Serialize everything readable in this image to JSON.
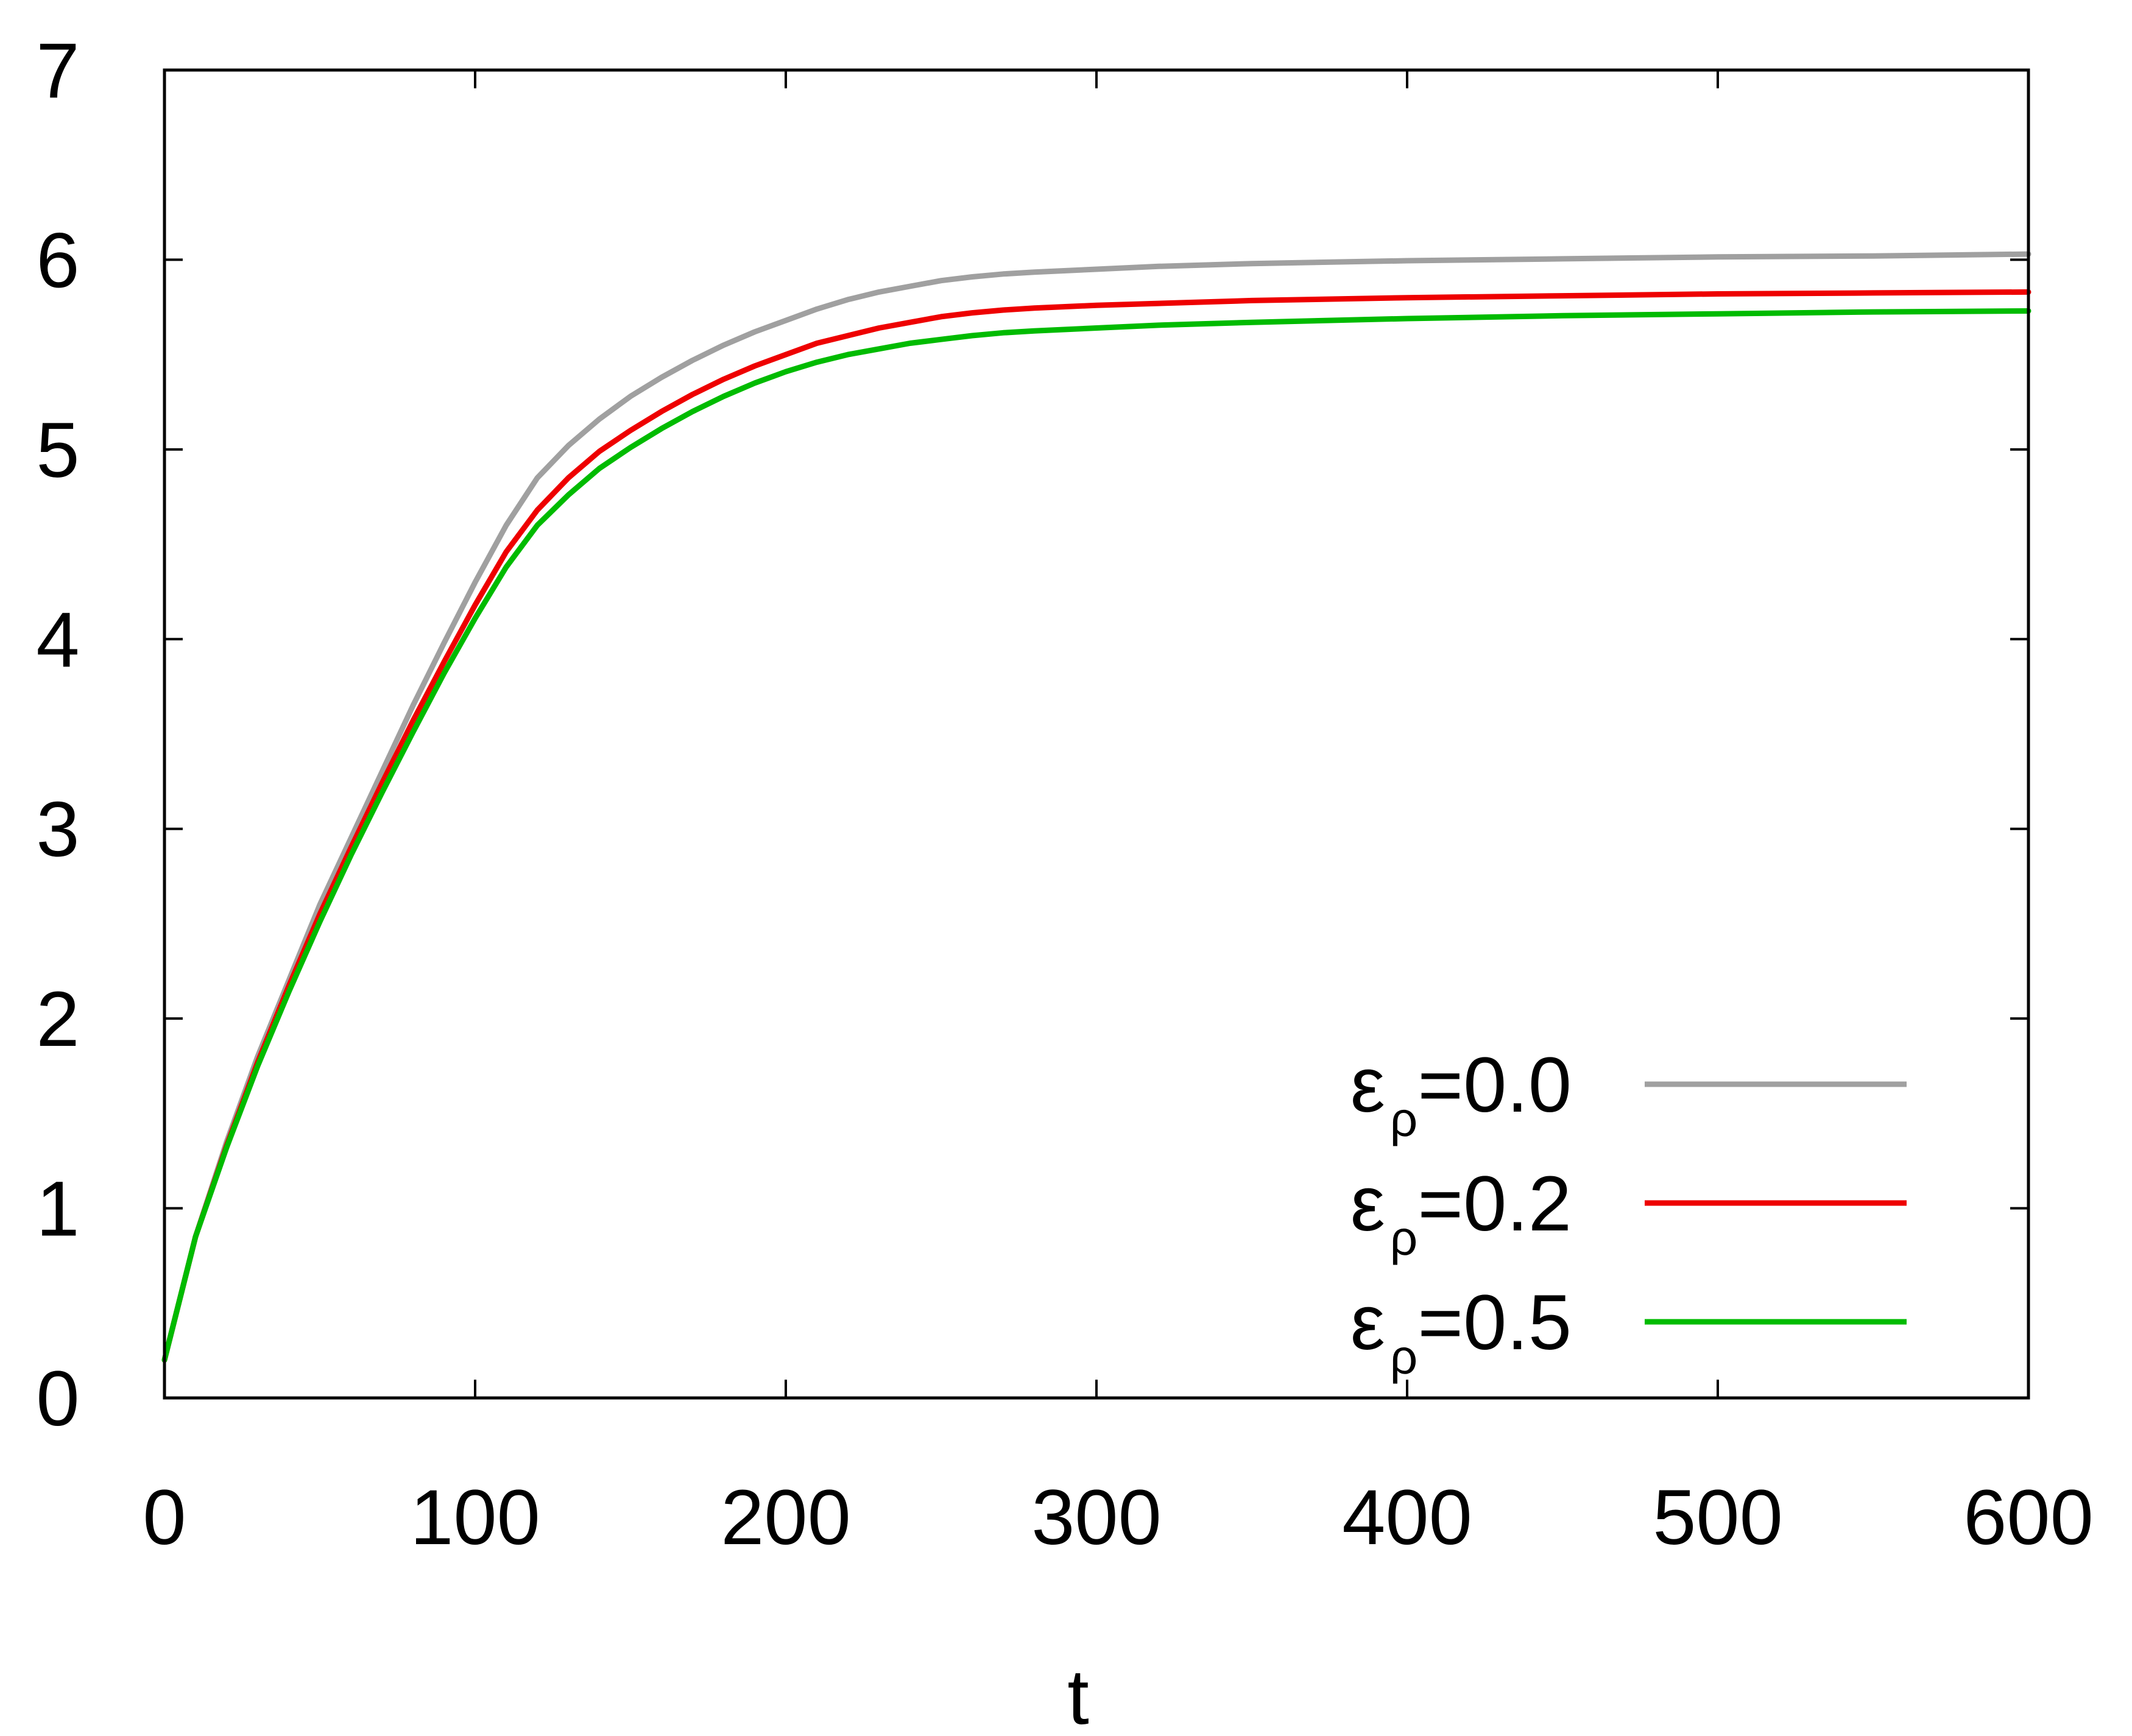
{
  "chart_data": {
    "type": "line",
    "title": "",
    "xlabel": "t",
    "ylabel": "",
    "xlim": [
      0,
      600
    ],
    "ylim": [
      0,
      7
    ],
    "xticks": [
      "0",
      "100",
      "200",
      "300",
      "400",
      "500",
      "600"
    ],
    "yticks": [
      "0",
      "1",
      "2",
      "3",
      "4",
      "5",
      "6",
      "7"
    ],
    "grid": false,
    "legend_position": "bottom-right",
    "series": [
      {
        "name": "ε",
        "name_sub": "ρ",
        "name_suffix": "=0.0",
        "color": "#a0a0a0",
        "x": [
          0,
          10,
          20,
          30,
          40,
          50,
          60,
          70,
          80,
          90,
          100,
          110,
          120,
          130,
          140,
          150,
          160,
          170,
          180,
          190,
          200,
          210,
          220,
          230,
          240,
          250,
          260,
          270,
          280,
          300,
          320,
          350,
          400,
          450,
          500,
          550,
          600
        ],
        "y": [
          0.2,
          0.85,
          1.35,
          1.8,
          2.2,
          2.6,
          2.95,
          3.3,
          3.65,
          3.98,
          4.3,
          4.6,
          4.85,
          5.02,
          5.16,
          5.28,
          5.38,
          5.47,
          5.55,
          5.62,
          5.68,
          5.74,
          5.79,
          5.83,
          5.86,
          5.89,
          5.91,
          5.925,
          5.935,
          5.95,
          5.965,
          5.98,
          5.995,
          6.005,
          6.015,
          6.02,
          6.03
        ]
      },
      {
        "name": "ε",
        "name_sub": "ρ",
        "name_suffix": "=0.2",
        "color": "#ee0000",
        "x": [
          0,
          10,
          20,
          30,
          40,
          50,
          60,
          70,
          80,
          90,
          100,
          110,
          120,
          130,
          140,
          150,
          160,
          170,
          180,
          190,
          200,
          210,
          220,
          230,
          240,
          250,
          260,
          270,
          280,
          300,
          320,
          350,
          400,
          450,
          500,
          550,
          600
        ],
        "y": [
          0.2,
          0.85,
          1.33,
          1.77,
          2.17,
          2.55,
          2.9,
          3.24,
          3.57,
          3.88,
          4.18,
          4.46,
          4.68,
          4.85,
          4.99,
          5.1,
          5.2,
          5.29,
          5.37,
          5.44,
          5.5,
          5.56,
          5.6,
          5.64,
          5.67,
          5.7,
          5.72,
          5.735,
          5.745,
          5.76,
          5.77,
          5.785,
          5.8,
          5.81,
          5.82,
          5.825,
          5.83
        ]
      },
      {
        "name": "ε",
        "name_sub": "ρ",
        "name_suffix": "=0.5",
        "color": "#00bb00",
        "x": [
          0,
          10,
          20,
          30,
          40,
          50,
          60,
          70,
          80,
          90,
          100,
          110,
          120,
          130,
          140,
          150,
          160,
          170,
          180,
          190,
          200,
          210,
          220,
          230,
          240,
          250,
          260,
          270,
          280,
          300,
          320,
          350,
          400,
          450,
          500,
          550,
          600
        ],
        "y": [
          0.2,
          0.85,
          1.32,
          1.75,
          2.14,
          2.51,
          2.86,
          3.19,
          3.51,
          3.82,
          4.11,
          4.38,
          4.6,
          4.76,
          4.9,
          5.01,
          5.11,
          5.2,
          5.28,
          5.35,
          5.41,
          5.46,
          5.5,
          5.53,
          5.56,
          5.58,
          5.6,
          5.615,
          5.625,
          5.64,
          5.655,
          5.67,
          5.69,
          5.705,
          5.715,
          5.725,
          5.73
        ]
      }
    ]
  }
}
